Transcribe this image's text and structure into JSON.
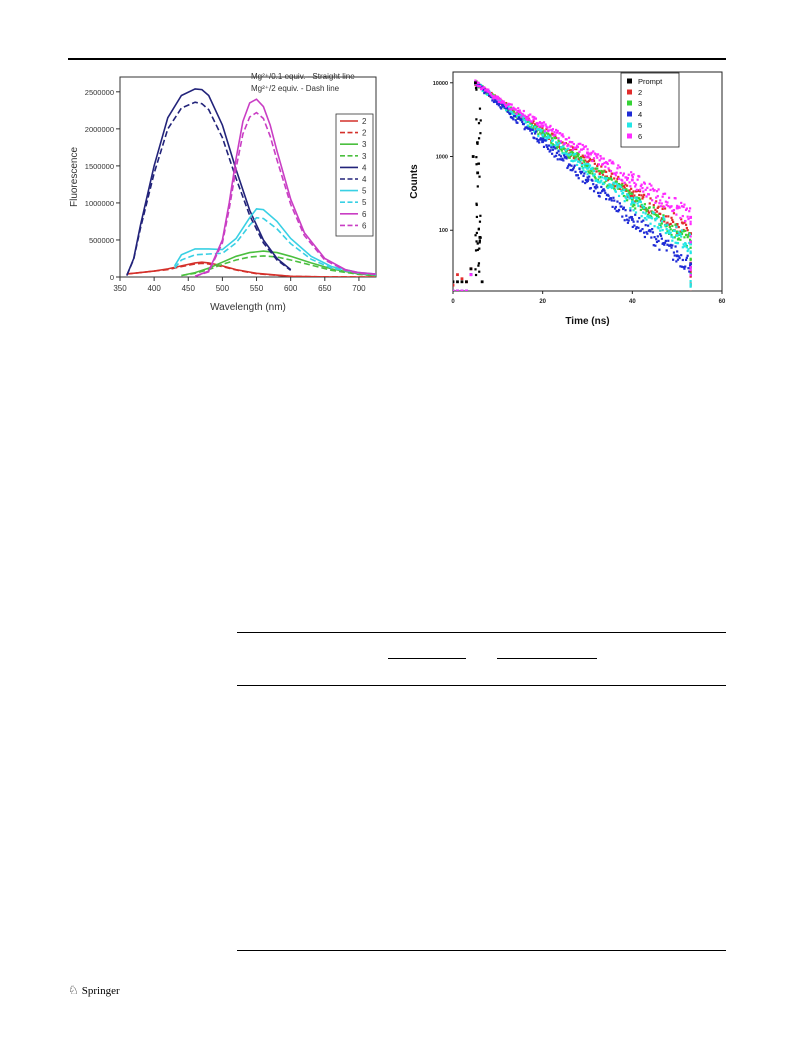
{
  "footer": {
    "publisher": "Springer",
    "icon": "springer-horse-icon"
  },
  "chart_data": [
    {
      "type": "line",
      "title": "",
      "xlabel": "Wavelength (nm)",
      "ylabel": "Fluorescence",
      "xlim": [
        350,
        725
      ],
      "ylim": [
        0,
        2700000
      ],
      "xticks": [
        350,
        400,
        450,
        500,
        550,
        600,
        650,
        700
      ],
      "yticks": [
        0,
        500000,
        1000000,
        1500000,
        2000000,
        2500000
      ],
      "grid": false,
      "legend_position": "top-right",
      "annotations": [
        "Mg²⁺/0.1 equiv. - Straight line",
        "Mg²⁺/2 equiv. - Dash line"
      ],
      "series": [
        {
          "name": "2",
          "style": "solid",
          "color": "#d4302a",
          "x": [
            360,
            380,
            400,
            420,
            440,
            460,
            470,
            480,
            500,
            520,
            550,
            600,
            650,
            700,
            725
          ],
          "y": [
            40000,
            60000,
            80000,
            110000,
            150000,
            190000,
            200000,
            190000,
            150000,
            100000,
            50000,
            10000,
            2000,
            0,
            0
          ]
        },
        {
          "name": "2",
          "style": "dash",
          "color": "#d4302a",
          "x": [
            360,
            380,
            400,
            420,
            440,
            460,
            470,
            480,
            500,
            520,
            550,
            600,
            650,
            700,
            725
          ],
          "y": [
            40000,
            60000,
            80000,
            100000,
            140000,
            175000,
            185000,
            175000,
            140000,
            95000,
            45000,
            10000,
            2000,
            0,
            0
          ]
        },
        {
          "name": "3",
          "style": "solid",
          "color": "#4bbf3f",
          "x": [
            440,
            460,
            480,
            500,
            520,
            540,
            560,
            580,
            600,
            630,
            660,
            700,
            725
          ],
          "y": [
            20000,
            60000,
            120000,
            200000,
            280000,
            330000,
            350000,
            330000,
            280000,
            190000,
            110000,
            40000,
            20000
          ]
        },
        {
          "name": "3",
          "style": "dash",
          "color": "#4bbf3f",
          "x": [
            440,
            460,
            480,
            500,
            520,
            540,
            560,
            580,
            600,
            630,
            660,
            700,
            725
          ],
          "y": [
            20000,
            50000,
            100000,
            170000,
            230000,
            270000,
            285000,
            270000,
            230000,
            160000,
            90000,
            35000,
            15000
          ]
        },
        {
          "name": "4",
          "style": "solid",
          "color": "#22237a",
          "x": [
            360,
            370,
            380,
            400,
            420,
            440,
            460,
            470,
            480,
            500,
            520,
            540,
            560,
            580,
            600
          ],
          "y": [
            20000,
            250000,
            700000,
            1500000,
            2150000,
            2450000,
            2540000,
            2530000,
            2450000,
            2050000,
            1450000,
            900000,
            500000,
            250000,
            100000
          ]
        },
        {
          "name": "4",
          "style": "dash",
          "color": "#22237a",
          "x": [
            360,
            370,
            380,
            400,
            420,
            440,
            460,
            470,
            480,
            500,
            520,
            540,
            560,
            580,
            600
          ],
          "y": [
            20000,
            240000,
            660000,
            1400000,
            2000000,
            2280000,
            2360000,
            2340000,
            2260000,
            1880000,
            1330000,
            830000,
            460000,
            230000,
            90000
          ]
        },
        {
          "name": "5",
          "style": "solid",
          "color": "#39d0e4",
          "x": [
            430,
            440,
            460,
            480,
            500,
            520,
            540,
            550,
            560,
            580,
            600,
            630,
            660,
            700,
            725
          ],
          "y": [
            150000,
            300000,
            380000,
            380000,
            370000,
            520000,
            800000,
            920000,
            910000,
            750000,
            520000,
            280000,
            140000,
            60000,
            40000
          ]
        },
        {
          "name": "5",
          "style": "dash",
          "color": "#39d0e4",
          "x": [
            430,
            440,
            460,
            480,
            500,
            520,
            540,
            550,
            560,
            580,
            600,
            630,
            660,
            700,
            725
          ],
          "y": [
            120000,
            230000,
            300000,
            310000,
            320000,
            460000,
            700000,
            800000,
            790000,
            650000,
            450000,
            240000,
            120000,
            50000,
            30000
          ]
        },
        {
          "name": "6",
          "style": "solid",
          "color": "#c93ec4",
          "x": [
            460,
            480,
            500,
            510,
            520,
            530,
            540,
            550,
            560,
            570,
            580,
            600,
            620,
            650,
            680,
            700,
            725
          ],
          "y": [
            10000,
            80000,
            500000,
            1000000,
            1600000,
            2100000,
            2350000,
            2400000,
            2300000,
            2050000,
            1700000,
            1050000,
            600000,
            250000,
            100000,
            60000,
            40000
          ]
        },
        {
          "name": "6",
          "style": "dash",
          "color": "#c93ec4",
          "x": [
            460,
            480,
            500,
            510,
            520,
            530,
            540,
            550,
            560,
            570,
            580,
            600,
            620,
            650,
            680,
            700,
            725
          ],
          "y": [
            10000,
            70000,
            460000,
            920000,
            1470000,
            1930000,
            2160000,
            2220000,
            2140000,
            1900000,
            1580000,
            980000,
            560000,
            230000,
            90000,
            50000,
            35000
          ]
        }
      ]
    },
    {
      "type": "scatter",
      "title": "",
      "xlabel": "Time (ns)",
      "ylabel": "Counts",
      "yscale": "log",
      "xlim": [
        0,
        60
      ],
      "ylim": [
        15,
        14000
      ],
      "xticks": [
        0,
        20,
        40,
        60
      ],
      "yticks": [
        100,
        1000,
        10000
      ],
      "grid": false,
      "legend_position": "top-right",
      "series": [
        {
          "name": "Prompt",
          "color": "#000000",
          "x": [
            0,
            1,
            2,
            3,
            4,
            4.5,
            5,
            5.5,
            6,
            6.5
          ],
          "y": [
            20,
            20,
            20,
            20,
            30,
            1000,
            10000,
            600,
            80,
            20
          ]
        },
        {
          "name": "2",
          "color": "#e22b2b",
          "x": [
            0,
            1,
            2,
            3,
            4,
            5,
            10,
            20,
            30,
            40,
            50,
            53
          ],
          "y": [
            18,
            25,
            22,
            20,
            30,
            10000,
            5800,
            2200,
            840,
            320,
            120,
            90
          ]
        },
        {
          "name": "3",
          "color": "#35d335",
          "x": [
            0,
            1,
            2,
            3,
            4,
            5,
            10,
            20,
            30,
            40,
            50,
            53
          ],
          "y": [
            15,
            15,
            15,
            15,
            25,
            10000,
            5700,
            2050,
            740,
            265,
            95,
            70
          ]
        },
        {
          "name": "4",
          "color": "#1f2bd6",
          "x": [
            0,
            1,
            2,
            3,
            4,
            5,
            10,
            20,
            30,
            40,
            50,
            53
          ],
          "y": [
            15,
            15,
            15,
            15,
            25,
            10000,
            5400,
            1600,
            470,
            140,
            45,
            35
          ]
        },
        {
          "name": "5",
          "color": "#22e6e6",
          "x": [
            0,
            1,
            2,
            3,
            4,
            5,
            10,
            20,
            30,
            40,
            50,
            53
          ],
          "y": [
            15,
            15,
            15,
            15,
            25,
            10000,
            5700,
            1950,
            690,
            240,
            85,
            65
          ]
        },
        {
          "name": "6",
          "color": "#ff2bff",
          "x": [
            0,
            1,
            2,
            3,
            4,
            5,
            10,
            20,
            30,
            40,
            50,
            53
          ],
          "y": [
            15,
            15,
            15,
            15,
            25,
            10000,
            6000,
            2600,
            1120,
            480,
            200,
            150
          ]
        }
      ]
    }
  ]
}
